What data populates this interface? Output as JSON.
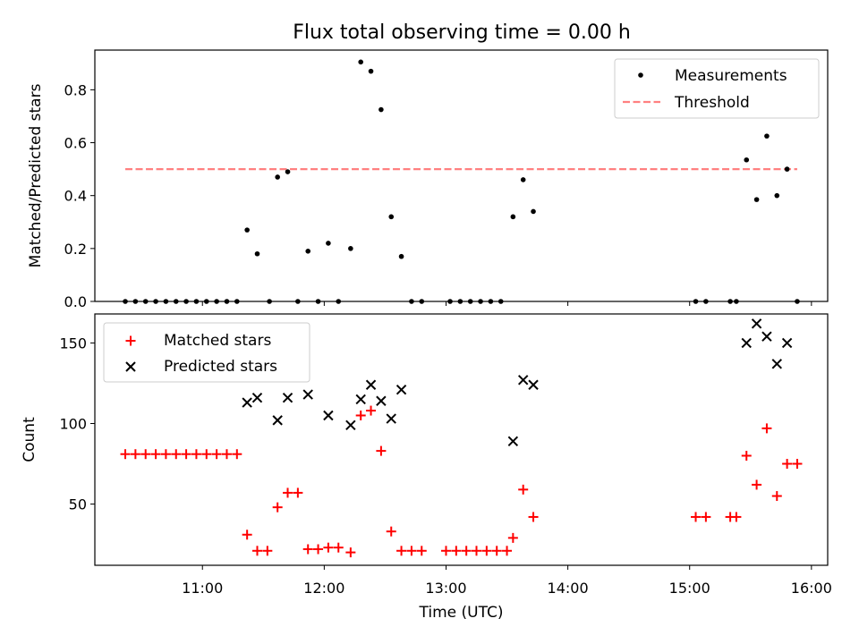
{
  "title": "Flux total observing time = 0.00 h",
  "chart_data": [
    {
      "type": "scatter",
      "panel": "top",
      "ylabel": "Matched/Predicted stars",
      "ylim": [
        0,
        0.95
      ],
      "yticks": [
        0.0,
        0.2,
        0.4,
        0.6,
        0.8
      ],
      "ytick_labels": [
        "0.0",
        "0.2",
        "0.4",
        "0.6",
        "0.8"
      ],
      "grid": false,
      "legend_position": "top-right",
      "series": [
        {
          "name": "Measurements",
          "marker": "dot",
          "color": "#000000",
          "points": [
            [
              "10:22",
              0.0
            ],
            [
              "10:27",
              0.0
            ],
            [
              "10:32",
              0.0
            ],
            [
              "10:37",
              0.0
            ],
            [
              "10:42",
              0.0
            ],
            [
              "10:47",
              0.0
            ],
            [
              "10:52",
              0.0
            ],
            [
              "10:57",
              0.0
            ],
            [
              "11:02",
              0.0
            ],
            [
              "11:07",
              0.0
            ],
            [
              "11:12",
              0.0
            ],
            [
              "11:17",
              0.0
            ],
            [
              "11:22",
              0.27
            ],
            [
              "11:27",
              0.18
            ],
            [
              "11:33",
              0.0
            ],
            [
              "11:37",
              0.47
            ],
            [
              "11:42",
              0.49
            ],
            [
              "11:47",
              0.0
            ],
            [
              "11:52",
              0.19
            ],
            [
              "11:57",
              0.0
            ],
            [
              "12:02",
              0.22
            ],
            [
              "12:07",
              0.0
            ],
            [
              "12:13",
              0.2
            ],
            [
              "12:18",
              0.905
            ],
            [
              "12:23",
              0.87
            ],
            [
              "12:28",
              0.725
            ],
            [
              "12:33",
              0.32
            ],
            [
              "12:38",
              0.17
            ],
            [
              "12:43",
              0.0
            ],
            [
              "12:48",
              0.0
            ],
            [
              "13:02",
              0.0
            ],
            [
              "13:07",
              0.0
            ],
            [
              "13:12",
              0.0
            ],
            [
              "13:17",
              0.0
            ],
            [
              "13:22",
              0.0
            ],
            [
              "13:27",
              0.0
            ],
            [
              "13:33",
              0.32
            ],
            [
              "13:38",
              0.46
            ],
            [
              "13:43",
              0.34
            ],
            [
              "15:03",
              0.0
            ],
            [
              "15:08",
              0.0
            ],
            [
              "15:20",
              0.0
            ],
            [
              "15:23",
              0.0
            ],
            [
              "15:28",
              0.535
            ],
            [
              "15:33",
              0.385
            ],
            [
              "15:38",
              0.625
            ],
            [
              "15:43",
              0.4
            ],
            [
              "15:48",
              0.5
            ],
            [
              "15:53",
              0.0
            ]
          ]
        },
        {
          "name": "Threshold",
          "style": "dashed",
          "color": "#ff8080",
          "points": [
            [
              "10:22",
              0.5
            ],
            [
              "15:53",
              0.5
            ]
          ]
        }
      ]
    },
    {
      "type": "scatter",
      "panel": "bottom",
      "xlabel": "Time (UTC)",
      "ylabel": "Count",
      "xlim": [
        "10:07",
        "16:08"
      ],
      "xticks": [
        "11:00",
        "12:00",
        "13:00",
        "14:00",
        "15:00",
        "16:00"
      ],
      "ylim": [
        12,
        168
      ],
      "yticks": [
        50,
        100,
        150
      ],
      "grid": false,
      "legend_position": "top-left",
      "series": [
        {
          "name": "Matched stars",
          "marker": "plus",
          "color": "#ff0000",
          "points": [
            [
              "10:22",
              81
            ],
            [
              "10:27",
              81
            ],
            [
              "10:32",
              81
            ],
            [
              "10:37",
              81
            ],
            [
              "10:42",
              81
            ],
            [
              "10:47",
              81
            ],
            [
              "10:52",
              81
            ],
            [
              "10:57",
              81
            ],
            [
              "11:02",
              81
            ],
            [
              "11:07",
              81
            ],
            [
              "11:12",
              81
            ],
            [
              "11:17",
              81
            ],
            [
              "11:22",
              31
            ],
            [
              "11:27",
              21
            ],
            [
              "11:32",
              21
            ],
            [
              "11:37",
              48
            ],
            [
              "11:42",
              57
            ],
            [
              "11:47",
              57
            ],
            [
              "11:52",
              22
            ],
            [
              "11:57",
              22
            ],
            [
              "12:02",
              23
            ],
            [
              "12:07",
              23
            ],
            [
              "12:13",
              20
            ],
            [
              "12:18",
              105
            ],
            [
              "12:23",
              108
            ],
            [
              "12:28",
              83
            ],
            [
              "12:33",
              33
            ],
            [
              "12:38",
              21
            ],
            [
              "12:43",
              21
            ],
            [
              "12:48",
              21
            ],
            [
              "13:00",
              21
            ],
            [
              "13:05",
              21
            ],
            [
              "13:10",
              21
            ],
            [
              "13:15",
              21
            ],
            [
              "13:20",
              21
            ],
            [
              "13:25",
              21
            ],
            [
              "13:30",
              21
            ],
            [
              "13:33",
              29
            ],
            [
              "13:38",
              59
            ],
            [
              "13:43",
              42
            ],
            [
              "15:03",
              42
            ],
            [
              "15:08",
              42
            ],
            [
              "15:20",
              42
            ],
            [
              "15:23",
              42
            ],
            [
              "15:28",
              80
            ],
            [
              "15:33",
              62
            ],
            [
              "15:38",
              97
            ],
            [
              "15:43",
              55
            ],
            [
              "15:48",
              75
            ],
            [
              "15:53",
              75
            ]
          ]
        },
        {
          "name": "Predicted stars",
          "marker": "x",
          "color": "#000000",
          "points": [
            [
              "11:22",
              113
            ],
            [
              "11:27",
              116
            ],
            [
              "11:37",
              102
            ],
            [
              "11:42",
              116
            ],
            [
              "11:52",
              118
            ],
            [
              "12:02",
              105
            ],
            [
              "12:13",
              99
            ],
            [
              "12:18",
              115
            ],
            [
              "12:23",
              124
            ],
            [
              "12:28",
              114
            ],
            [
              "12:33",
              103
            ],
            [
              "12:38",
              121
            ],
            [
              "13:33",
              89
            ],
            [
              "13:38",
              127
            ],
            [
              "13:43",
              124
            ],
            [
              "15:28",
              150
            ],
            [
              "15:33",
              162
            ],
            [
              "15:38",
              154
            ],
            [
              "15:43",
              137
            ],
            [
              "15:48",
              150
            ]
          ]
        }
      ]
    }
  ]
}
